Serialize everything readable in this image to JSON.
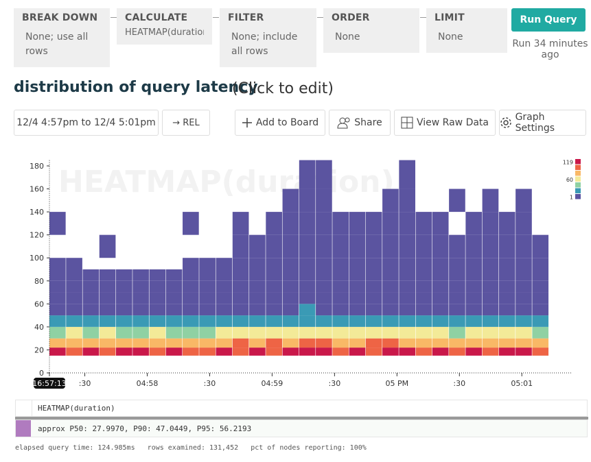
{
  "query_builder": {
    "clauses": [
      {
        "label": "BREAK DOWN",
        "value": "None; use all rows"
      },
      {
        "label": "CALCULATE",
        "value": "HEATMAP(duration)"
      },
      {
        "label": "FILTER",
        "value": "None; include all rows"
      },
      {
        "label": "ORDER",
        "value": "None"
      },
      {
        "label": "LIMIT",
        "value": "None"
      }
    ],
    "run_button": "Run Query",
    "run_status": "Run 34 minutes ago"
  },
  "header": {
    "title": "distribution of query latency",
    "edit_hint": "(Click to edit)"
  },
  "toolbar": {
    "time_range": "12/4 4:57pm to 12/4 5:01pm",
    "rel": "→ REL",
    "add_to_board": "Add to Board",
    "share": "Share",
    "view_raw": "View Raw Data",
    "graph_settings": "Graph Settings"
  },
  "chart_data": {
    "type": "heatmap",
    "watermark": "HEATMAP(duration)",
    "xlim": [
      61033,
      61284
    ],
    "xticks": [
      {
        "value": 61033,
        "label": "16:57:13"
      },
      {
        "value": 61050,
        "label": ":30"
      },
      {
        "value": 61080,
        "label": "04:58"
      },
      {
        "value": 61110,
        "label": ":30"
      },
      {
        "value": 61140,
        "label": "04:59"
      },
      {
        "value": 61170,
        "label": ":30"
      },
      {
        "value": 61200,
        "label": "05 PM"
      },
      {
        "value": 61230,
        "label": ":30"
      },
      {
        "value": 61260,
        "label": "05:01"
      }
    ],
    "ylim": [
      0,
      185
    ],
    "yticks": [
      0,
      20,
      40,
      60,
      80,
      100,
      120,
      140,
      160,
      180
    ],
    "x_bins": [
      61033,
      61041,
      61049,
      61057,
      61065,
      61073,
      61081,
      61089,
      61097,
      61105,
      61113,
      61121,
      61129,
      61137,
      61145,
      61153,
      61161,
      61169,
      61177,
      61185,
      61193,
      61201,
      61209,
      61217,
      61225,
      61233,
      61241,
      61249,
      61257,
      61265,
      61273
    ],
    "y_bins": [
      15,
      22,
      30,
      40,
      50,
      60,
      70,
      80,
      90,
      100,
      120,
      140,
      160,
      185
    ],
    "values": [
      [
        110,
        80,
        50,
        25,
        12,
        6,
        3,
        2,
        1,
        0,
        1,
        0,
        0
      ],
      [
        100,
        85,
        55,
        22,
        10,
        5,
        3,
        1,
        1,
        0,
        0,
        0,
        0
      ],
      [
        112,
        78,
        48,
        20,
        9,
        5,
        2,
        1,
        0,
        0,
        0,
        0,
        0
      ],
      [
        95,
        82,
        52,
        24,
        10,
        5,
        3,
        2,
        0,
        1,
        0,
        0,
        0
      ],
      [
        108,
        76,
        45,
        20,
        9,
        4,
        2,
        1,
        0,
        0,
        0,
        0,
        0
      ],
      [
        104,
        80,
        50,
        22,
        10,
        6,
        3,
        1,
        0,
        0,
        0,
        0,
        0
      ],
      [
        99,
        83,
        54,
        21,
        9,
        5,
        2,
        1,
        0,
        0,
        0,
        0,
        0
      ],
      [
        113,
        77,
        47,
        23,
        11,
        6,
        2,
        1,
        0,
        0,
        0,
        0,
        0
      ],
      [
        102,
        84,
        51,
        25,
        12,
        7,
        3,
        2,
        1,
        0,
        1,
        0,
        0
      ],
      [
        97,
        79,
        49,
        20,
        10,
        5,
        2,
        1,
        1,
        0,
        0,
        0,
        0
      ],
      [
        106,
        81,
        53,
        24,
        11,
        6,
        4,
        2,
        1,
        0,
        0,
        0,
        0
      ],
      [
        101,
        86,
        56,
        26,
        13,
        8,
        4,
        2,
        1,
        1,
        1,
        0,
        0
      ],
      [
        109,
        82,
        52,
        27,
        14,
        8,
        5,
        3,
        1,
        1,
        0,
        0,
        0
      ],
      [
        98,
        88,
        58,
        28,
        15,
        9,
        5,
        3,
        2,
        1,
        1,
        0,
        0
      ],
      [
        115,
        85,
        57,
        30,
        16,
        10,
        6,
        4,
        2,
        1,
        1,
        1,
        0
      ],
      [
        103,
        90,
        60,
        32,
        18,
        12,
        7,
        4,
        3,
        2,
        2,
        1,
        1
      ],
      [
        107,
        87,
        59,
        31,
        17,
        11,
        7,
        4,
        3,
        2,
        1,
        1,
        1
      ],
      [
        100,
        84,
        55,
        28,
        15,
        9,
        5,
        3,
        2,
        1,
        1,
        0,
        0
      ],
      [
        111,
        83,
        54,
        27,
        14,
        8,
        5,
        3,
        1,
        1,
        1,
        0,
        0
      ],
      [
        96,
        86,
        57,
        29,
        15,
        9,
        6,
        3,
        2,
        1,
        1,
        0,
        0
      ],
      [
        110,
        88,
        58,
        30,
        17,
        10,
        6,
        4,
        2,
        2,
        1,
        1,
        0
      ],
      [
        104,
        85,
        56,
        29,
        16,
        10,
        6,
        4,
        3,
        2,
        2,
        1,
        1
      ],
      [
        99,
        82,
        53,
        27,
        14,
        8,
        5,
        3,
        2,
        1,
        1,
        0,
        0
      ],
      [
        112,
        84,
        55,
        28,
        15,
        9,
        5,
        3,
        1,
        1,
        1,
        0,
        0
      ],
      [
        101,
        80,
        51,
        26,
        13,
        8,
        4,
        2,
        1,
        1,
        0,
        1,
        0
      ],
      [
        107,
        83,
        54,
        27,
        14,
        8,
        5,
        3,
        2,
        1,
        1,
        0,
        0
      ],
      [
        98,
        81,
        52,
        25,
        13,
        7,
        4,
        2,
        1,
        1,
        1,
        1,
        0
      ],
      [
        114,
        85,
        56,
        28,
        14,
        8,
        5,
        3,
        2,
        1,
        1,
        0,
        0
      ],
      [
        103,
        82,
        53,
        26,
        13,
        7,
        4,
        3,
        1,
        1,
        1,
        1,
        0
      ],
      [
        100,
        79,
        50,
        24,
        12,
        6,
        4,
        2,
        1,
        1,
        0,
        0,
        0
      ]
    ],
    "color_scale": [
      "#5b54a0",
      "#3a9ab5",
      "#8fd1a3",
      "#f3ea98",
      "#f9b866",
      "#ee6445",
      "#c9184a"
    ],
    "clim": [
      1,
      119
    ],
    "legend_ticks": [
      119,
      60,
      1
    ]
  },
  "results": {
    "header": "HEATMAP(duration)",
    "row": "approx P50: 27.9970, P90: 47.0449, P95: 56.2193"
  },
  "footer": {
    "elapsed": "elapsed query time: 124.985ms",
    "rows": "rows examined: 131,452",
    "pct": "pct of nodes reporting: 100%"
  }
}
